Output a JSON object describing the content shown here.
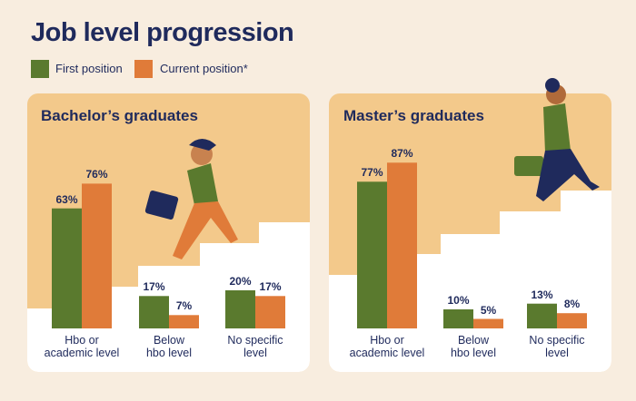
{
  "title": "Job level progression",
  "chart_data": [
    {
      "type": "bar",
      "title": "Bachelor’s graduates",
      "categories": [
        "Hbo or academic level",
        "Below hbo level",
        "No specific level"
      ],
      "series": [
        {
          "name": "First position",
          "color": "#5a7a2e",
          "values": [
            63,
            17,
            20
          ],
          "value_labels": [
            "63%",
            "17%",
            "20%"
          ]
        },
        {
          "name": "Current position*",
          "color": "#e07b39",
          "values": [
            76,
            7,
            17
          ],
          "value_labels": [
            "76%",
            "7%",
            "17%"
          ]
        }
      ]
    },
    {
      "type": "bar",
      "title": "Master’s graduates",
      "categories": [
        "Hbo or academic level",
        "Below hbo level",
        "No specific level"
      ],
      "series": [
        {
          "name": "First position",
          "color": "#5a7a2e",
          "values": [
            77,
            10,
            13
          ],
          "value_labels": [
            "77%",
            "10%",
            "13%"
          ]
        },
        {
          "name": "Current position*",
          "color": "#e07b39",
          "values": [
            87,
            5,
            8
          ],
          "value_labels": [
            "87%",
            "5%",
            "8%"
          ]
        }
      ]
    }
  ]
}
